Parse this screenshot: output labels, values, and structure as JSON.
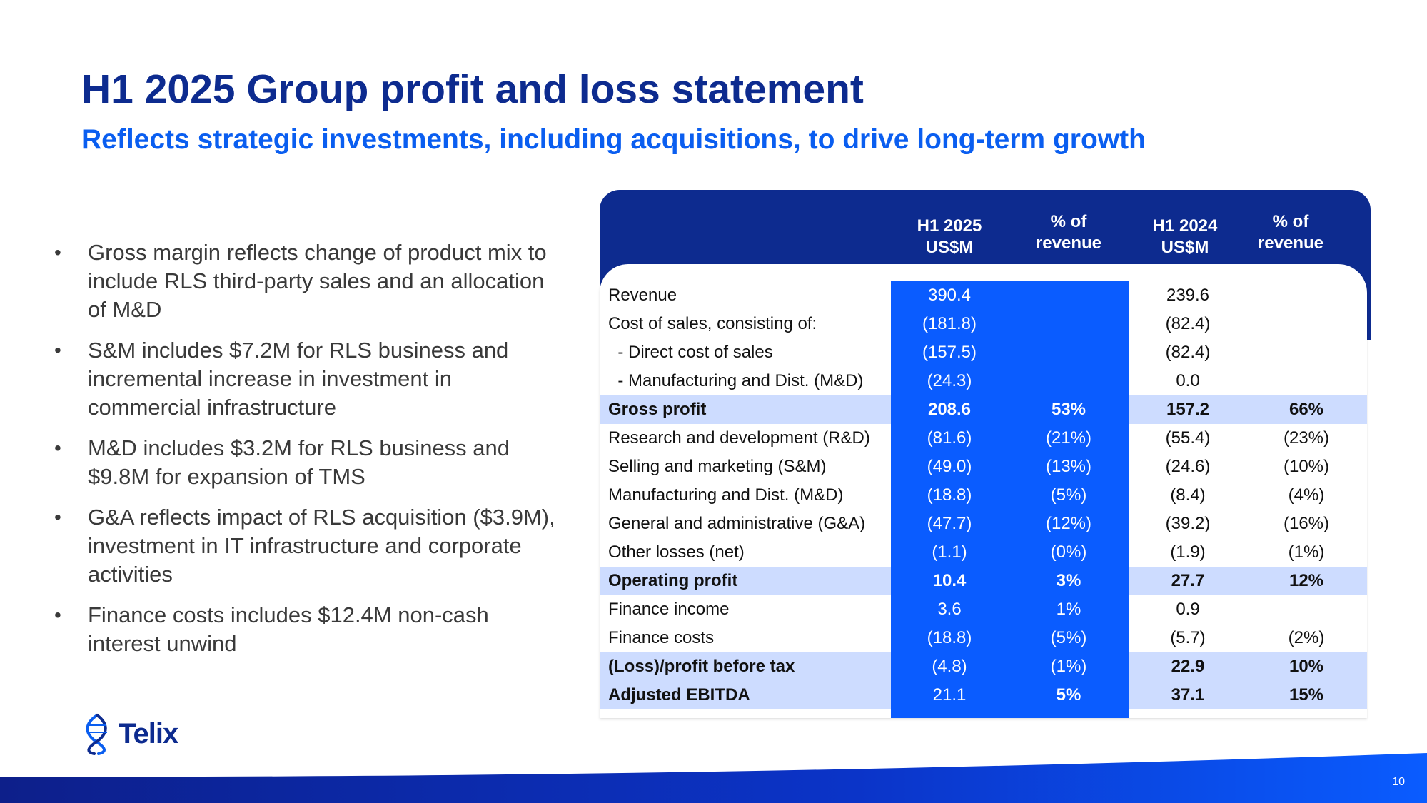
{
  "title": "H1 2025 Group profit and loss statement",
  "subtitle": "Reflects strategic investments, including acquisitions, to drive long-term growth",
  "bullets": [
    "Gross margin reflects change of product mix to include RLS third-party sales and an allocation of M&D",
    "S&M includes $7.2M for RLS business and incremental increase in investment in commercial infrastructure",
    "M&D includes $3.2M for RLS business and $9.8M for expansion of TMS",
    "G&A reflects impact of RLS acquisition ($3.9M), investment in IT infrastructure and corporate activities",
    "Finance costs includes $12.4M non-cash interest unwind"
  ],
  "table": {
    "headers": {
      "h1_2025_line1": "H1 2025",
      "h1_2025_line2": "US$M",
      "pct1_line1": "% of",
      "pct1_line2": "revenue",
      "h1_2024_line1": "H1 2024",
      "h1_2024_line2": "US$M",
      "pct2_line1": "% of",
      "pct2_line2": "revenue"
    },
    "rows": [
      {
        "label": "Revenue",
        "h1_2025": "390.4",
        "pct_2025": "",
        "h1_2024": "239.6",
        "pct_2024": ""
      },
      {
        "label": "Cost of sales, consisting of:",
        "h1_2025": "(181.8)",
        "pct_2025": "",
        "h1_2024": "(82.4)",
        "pct_2024": ""
      },
      {
        "label": "  - Direct cost of sales",
        "h1_2025": "(157.5)",
        "pct_2025": "",
        "h1_2024": "(82.4)",
        "pct_2024": ""
      },
      {
        "label": "  - Manufacturing and Dist. (M&D)",
        "h1_2025": "(24.3)",
        "pct_2025": "",
        "h1_2024": "0.0",
        "pct_2024": ""
      },
      {
        "label": "Gross profit",
        "h1_2025": "208.6",
        "pct_2025": "53%",
        "h1_2024": "157.2",
        "pct_2024": "66%"
      },
      {
        "label": "Research and development (R&D)",
        "h1_2025": "(81.6)",
        "pct_2025": "(21%)",
        "h1_2024": "(55.4)",
        "pct_2024": "(23%)"
      },
      {
        "label": "Selling and marketing (S&M)",
        "h1_2025": "(49.0)",
        "pct_2025": "(13%)",
        "h1_2024": "(24.6)",
        "pct_2024": "(10%)"
      },
      {
        "label": "Manufacturing and Dist. (M&D)",
        "h1_2025": "(18.8)",
        "pct_2025": "(5%)",
        "h1_2024": "(8.4)",
        "pct_2024": "(4%)"
      },
      {
        "label": "General and administrative (G&A)",
        "h1_2025": "(47.7)",
        "pct_2025": "(12%)",
        "h1_2024": "(39.2)",
        "pct_2024": "(16%)"
      },
      {
        "label": "Other losses (net)",
        "h1_2025": "(1.1)",
        "pct_2025": "(0%)",
        "h1_2024": "(1.9)",
        "pct_2024": "(1%)"
      },
      {
        "label": "Operating profit",
        "h1_2025": "10.4",
        "pct_2025": "3%",
        "h1_2024": "27.7",
        "pct_2024": "12%"
      },
      {
        "label": "Finance income",
        "h1_2025": "3.6",
        "pct_2025": "1%",
        "h1_2024": "0.9",
        "pct_2024": ""
      },
      {
        "label": "Finance costs",
        "h1_2025": "(18.8)",
        "pct_2025": "(5%)",
        "h1_2024": "(5.7)",
        "pct_2024": "(2%)"
      },
      {
        "label": "(Loss)/profit before tax",
        "h1_2025": "(4.8)",
        "pct_2025": "(1%)",
        "h1_2024": "22.9",
        "pct_2024": "10%"
      },
      {
        "label": "Adjusted EBITDA",
        "h1_2025": "21.1",
        "pct_2025": "5%",
        "h1_2024": "37.1",
        "pct_2024": "15%"
      }
    ]
  },
  "logo": {
    "text": "Telix"
  },
  "page_number": "10",
  "colors": {
    "navy": "#0d2b8f",
    "accent_blue": "#0a5ef0",
    "column_blue": "#0a5cff",
    "highlight_row": "#cddcff"
  }
}
